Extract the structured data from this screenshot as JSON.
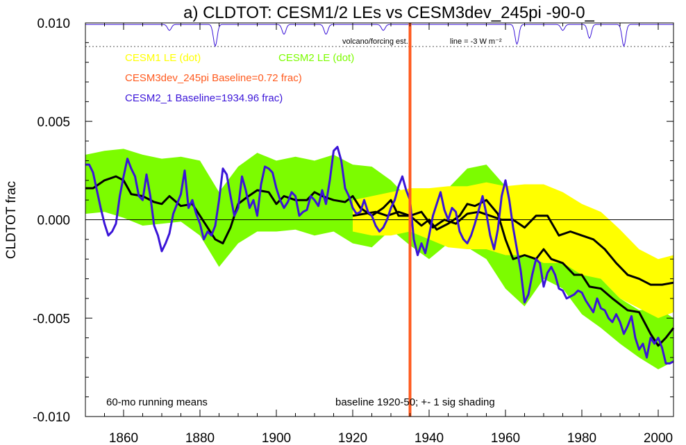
{
  "chart_data": {
    "type": "line",
    "title": "a) CLDTOT: CESM1/2 LEs vs CESM3dev_245pi -90-0_",
    "xlabel": "",
    "ylabel": "CLDTOT frac",
    "xlim": [
      1850,
      2004
    ],
    "ylim": [
      -0.01,
      0.01
    ],
    "x_ticks": [
      "1860",
      "1880",
      "1900",
      "1920",
      "1940",
      "1960",
      "1980",
      "2000"
    ],
    "y_ticks": [
      "0.010",
      "0.005",
      "0.000",
      "-0.005",
      "-0.010"
    ],
    "vertical_marker": {
      "x": 1935,
      "color": "#ff5a1e"
    },
    "legend": [
      {
        "label": "CESM1 LE (dot)",
        "color": "#ffff00"
      },
      {
        "label": "CESM2 LE (dot)",
        "color": "#7cfc00"
      },
      {
        "label": "CESM3dev_245pi Baseline=0.72 frac)",
        "color": "#ff5a1e"
      },
      {
        "label": "CESM2_1 Baseline=1934.96 frac)",
        "color": "#3a14d8"
      }
    ],
    "annotations": {
      "forcing": "volcano/forcing est.",
      "forcing_scale": "line = -3 W m⁻²",
      "running_mean": "60-mo running means",
      "baseline": "baseline 1920-50; +- 1 sig shading"
    },
    "forcing_reference_y": 0.0088,
    "volcano_dips": [
      {
        "x": 1884,
        "depth": 0.0011
      },
      {
        "x": 1902,
        "depth": 0.0005
      },
      {
        "x": 1913,
        "depth": 0.0005
      },
      {
        "x": 1963,
        "depth": 0.001
      },
      {
        "x": 1982,
        "depth": 0.0007
      },
      {
        "x": 1991,
        "depth": 0.0011
      },
      {
        "x": 1872,
        "depth": 0.0003
      },
      {
        "x": 1928,
        "depth": 0.0003
      },
      {
        "x": 1975,
        "depth": 0.0003
      }
    ],
    "series": [
      {
        "name": "CESM2 LE range (+-1 sig)",
        "color": "#7cfc00",
        "x": [
          1850,
          1855,
          1860,
          1865,
          1870,
          1875,
          1880,
          1885,
          1890,
          1895,
          1900,
          1905,
          1910,
          1915,
          1920,
          1925,
          1930,
          1935,
          1940,
          1945,
          1950,
          1955,
          1960,
          1965,
          1970,
          1975,
          1980,
          1985,
          1990,
          1995,
          2000,
          2004
        ],
        "upper": [
          0.0033,
          0.0035,
          0.0036,
          0.0033,
          0.0031,
          0.0032,
          0.003,
          0.0014,
          0.0027,
          0.0034,
          0.003,
          0.0032,
          0.003,
          0.0033,
          0.0028,
          0.0027,
          0.002,
          0.001,
          0.0012,
          0.0016,
          0.0026,
          0.0028,
          0.0017,
          0.0005,
          -0.0006,
          -0.001,
          -0.002,
          -0.003,
          -0.004,
          -0.0046,
          -0.0045,
          -0.005
        ],
        "lower": [
          0.0003,
          0.0004,
          0.0001,
          -0.0003,
          -0.0002,
          -0.0001,
          -0.0008,
          -0.0024,
          -0.0012,
          -0.0006,
          -0.0006,
          -0.0005,
          -0.0008,
          -0.0006,
          -0.0012,
          -0.0014,
          -0.0005,
          -0.0013,
          -0.002,
          -0.0012,
          -0.0014,
          -0.002,
          -0.0035,
          -0.0044,
          -0.003,
          -0.0035,
          -0.0048,
          -0.0055,
          -0.0063,
          -0.007,
          -0.0076,
          -0.0072
        ]
      },
      {
        "name": "CESM1 LE range (+-1 sig)",
        "color": "#ffff00",
        "x": [
          1920,
          1925,
          1930,
          1935,
          1940,
          1945,
          1950,
          1955,
          1960,
          1965,
          1970,
          1975,
          1980,
          1985,
          1990,
          1995,
          2000,
          2004
        ],
        "upper": [
          0.001,
          0.0012,
          0.0014,
          0.0016,
          0.0016,
          0.0017,
          0.0017,
          0.0019,
          0.0017,
          0.0018,
          0.0018,
          0.0014,
          0.0008,
          0.0004,
          -0.0005,
          -0.0015,
          -0.002,
          -0.0018
        ],
        "lower": [
          -0.0006,
          -0.0008,
          -0.0008,
          -0.0006,
          -0.001,
          -0.0014,
          -0.0015,
          -0.0015,
          -0.0018,
          -0.0018,
          -0.0022,
          -0.0022,
          -0.0028,
          -0.003,
          -0.004,
          -0.0045,
          -0.005,
          -0.0047
        ]
      },
      {
        "name": "CESM2 LE mean",
        "color": "#000000",
        "x": [
          1850,
          1852,
          1855,
          1858,
          1860,
          1862,
          1865,
          1868,
          1870,
          1872,
          1875,
          1878,
          1880,
          1882,
          1884,
          1886,
          1888,
          1890,
          1892,
          1895,
          1898,
          1900,
          1902,
          1905,
          1908,
          1910,
          1912,
          1915,
          1918,
          1920,
          1922,
          1925,
          1928,
          1930,
          1932,
          1935,
          1938,
          1940,
          1942,
          1945,
          1948,
          1950,
          1952,
          1955,
          1958,
          1960,
          1962,
          1965,
          1968,
          1970,
          1972,
          1975,
          1978,
          1980,
          1982,
          1985,
          1988,
          1990,
          1992,
          1995,
          1998,
          2000,
          2002,
          2004
        ],
        "values": [
          0.0016,
          0.0016,
          0.002,
          0.0022,
          0.002,
          0.0013,
          0.0012,
          0.0009,
          0.0008,
          0.0012,
          0.0007,
          0.0008,
          0.0002,
          -0.0004,
          -0.001,
          -0.0012,
          -0.0004,
          0.0008,
          0.0011,
          0.0015,
          0.0014,
          0.0008,
          0.0012,
          0.001,
          0.001,
          0.0014,
          0.0012,
          0.001,
          0.0009,
          0.0012,
          0.0006,
          0.0002,
          0.0006,
          0.001,
          0.0002,
          0.0002,
          -0.0003,
          0.0,
          -0.0005,
          -0.0002,
          0.0002,
          0.0008,
          0.0007,
          0.001,
          0.0003,
          -0.001,
          -0.002,
          -0.0018,
          -0.002,
          -0.0015,
          -0.002,
          -0.0022,
          -0.0028,
          -0.0028,
          -0.0034,
          -0.0035,
          -0.004,
          -0.0043,
          -0.0046,
          -0.0047,
          -0.0058,
          -0.0064,
          -0.006,
          -0.0055
        ]
      },
      {
        "name": "CESM1 LE mean",
        "color": "#000000",
        "x": [
          1920,
          1923,
          1926,
          1929,
          1932,
          1935,
          1938,
          1941,
          1944,
          1947,
          1950,
          1953,
          1956,
          1959,
          1962,
          1965,
          1968,
          1971,
          1974,
          1977,
          1980,
          1983,
          1986,
          1989,
          1992,
          1995,
          1998,
          2001,
          2004
        ],
        "values": [
          0.0002,
          0.0003,
          0.0004,
          0.0002,
          0.0004,
          0.0002,
          0.0004,
          -0.0004,
          0.0,
          -0.0002,
          0.0003,
          0.0004,
          0.0002,
          0.0,
          0.0,
          -0.0004,
          0.0002,
          0.0002,
          -0.0008,
          -0.0006,
          -0.0008,
          -0.001,
          -0.0015,
          -0.0022,
          -0.0028,
          -0.003,
          -0.0033,
          -0.0033,
          -0.0032
        ]
      },
      {
        "name": "CESM2_1",
        "color": "#3a14d8",
        "x": [
          1850,
          1851,
          1852,
          1853,
          1854,
          1855,
          1856,
          1857,
          1858,
          1859,
          1860,
          1861,
          1862,
          1863,
          1864,
          1865,
          1866,
          1867,
          1868,
          1869,
          1870,
          1871,
          1872,
          1873,
          1874,
          1875,
          1876,
          1877,
          1878,
          1879,
          1880,
          1881,
          1882,
          1883,
          1884,
          1885,
          1886,
          1887,
          1888,
          1889,
          1890,
          1891,
          1892,
          1893,
          1894,
          1895,
          1896,
          1897,
          1898,
          1899,
          1900,
          1901,
          1902,
          1903,
          1904,
          1905,
          1906,
          1907,
          1908,
          1909,
          1910,
          1911,
          1912,
          1913,
          1914,
          1915,
          1916,
          1917,
          1918,
          1919,
          1920,
          1921,
          1922,
          1923,
          1924,
          1925,
          1926,
          1927,
          1928,
          1929,
          1930,
          1931,
          1932,
          1933,
          1934,
          1935,
          1936,
          1937,
          1938,
          1939,
          1940,
          1941,
          1942,
          1943,
          1944,
          1945,
          1946,
          1947,
          1948,
          1949,
          1950,
          1951,
          1952,
          1953,
          1954,
          1955,
          1956,
          1957,
          1958,
          1959,
          1960,
          1961,
          1962,
          1963,
          1964,
          1965,
          1966,
          1967,
          1968,
          1969,
          1970,
          1971,
          1972,
          1973,
          1974,
          1975,
          1976,
          1977,
          1978,
          1979,
          1980,
          1981,
          1982,
          1983,
          1984,
          1985,
          1986,
          1987,
          1988,
          1989,
          1990,
          1991,
          1992,
          1993,
          1994,
          1995,
          1996,
          1997,
          1998,
          1999,
          2000,
          2001,
          2002,
          2003,
          2004
        ],
        "values": [
          0.0028,
          0.0028,
          0.0024,
          0.0015,
          0.0006,
          -0.0002,
          -0.0008,
          -0.0006,
          -0.0002,
          0.0012,
          0.0022,
          0.0031,
          0.0026,
          0.0022,
          0.0012,
          0.001,
          0.0023,
          0.0012,
          -0.0003,
          -0.0008,
          -0.0016,
          -0.0012,
          -0.0007,
          0.0003,
          0.0008,
          0.0013,
          0.0025,
          0.0006,
          0.001,
          0.0003,
          -0.0002,
          -0.001,
          -0.0006,
          -0.0008,
          -0.0003,
          0.001,
          0.0026,
          0.0023,
          0.0012,
          0.0002,
          0.0006,
          0.0022,
          0.0015,
          0.0006,
          0.001,
          0.0002,
          0.0018,
          0.0027,
          0.0026,
          0.0024,
          0.0016,
          0.001,
          0.0006,
          0.0009,
          0.0014,
          0.0012,
          0.0002,
          0.0004,
          0.0005,
          0.0012,
          0.001,
          0.0007,
          0.0015,
          0.0008,
          0.002,
          0.0035,
          0.0037,
          0.003,
          0.0016,
          0.0012,
          0.0006,
          0.0003,
          0.0004,
          0.001,
          0.0004,
          0.0002,
          -0.0003,
          -0.0006,
          -0.0004,
          0.0,
          0.0006,
          0.001,
          0.0017,
          0.0022,
          0.0015,
          0.001,
          -0.001,
          -0.0018,
          -0.0012,
          -0.0017,
          -0.0008,
          0.0002,
          0.0008,
          0.0014,
          0.0005,
          0.0,
          0.0006,
          0.0004,
          -0.0006,
          -0.001,
          -0.0012,
          -0.0008,
          -0.0002,
          0.0005,
          0.0012,
          0.0003,
          -0.0008,
          -0.0015,
          -0.0005,
          0.0012,
          0.002,
          0.001,
          -0.0004,
          -0.0015,
          -0.0026,
          -0.0042,
          -0.0038,
          -0.0028,
          -0.002,
          -0.0022,
          -0.0034,
          -0.0027,
          -0.0024,
          -0.0028,
          -0.0035,
          -0.0036,
          -0.004,
          -0.0039,
          -0.0038,
          -0.0036,
          -0.0037,
          -0.0041,
          -0.0044,
          -0.0047,
          -0.004,
          -0.0045,
          -0.0046,
          -0.005,
          -0.0052,
          -0.0048,
          -0.0052,
          -0.0058,
          -0.0054,
          -0.0049,
          -0.006,
          -0.0066,
          -0.0063,
          -0.007,
          -0.006,
          -0.0063,
          -0.006,
          -0.0065,
          -0.0073,
          -0.0073,
          -0.0072
        ]
      }
    ]
  }
}
